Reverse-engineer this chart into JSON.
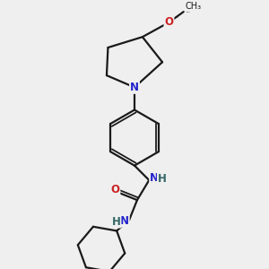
{
  "bg_color": "#efefef",
  "bond_color": "#1a1a1a",
  "N_color": "#2222cc",
  "O_color": "#cc2222",
  "NH_color": "#336666",
  "line_width": 1.6,
  "font_size_atom": 8.5,
  "fig_width": 3.0,
  "fig_height": 3.0,
  "dpi": 100,
  "xlim": [
    0,
    10
  ],
  "ylim": [
    0,
    10
  ]
}
